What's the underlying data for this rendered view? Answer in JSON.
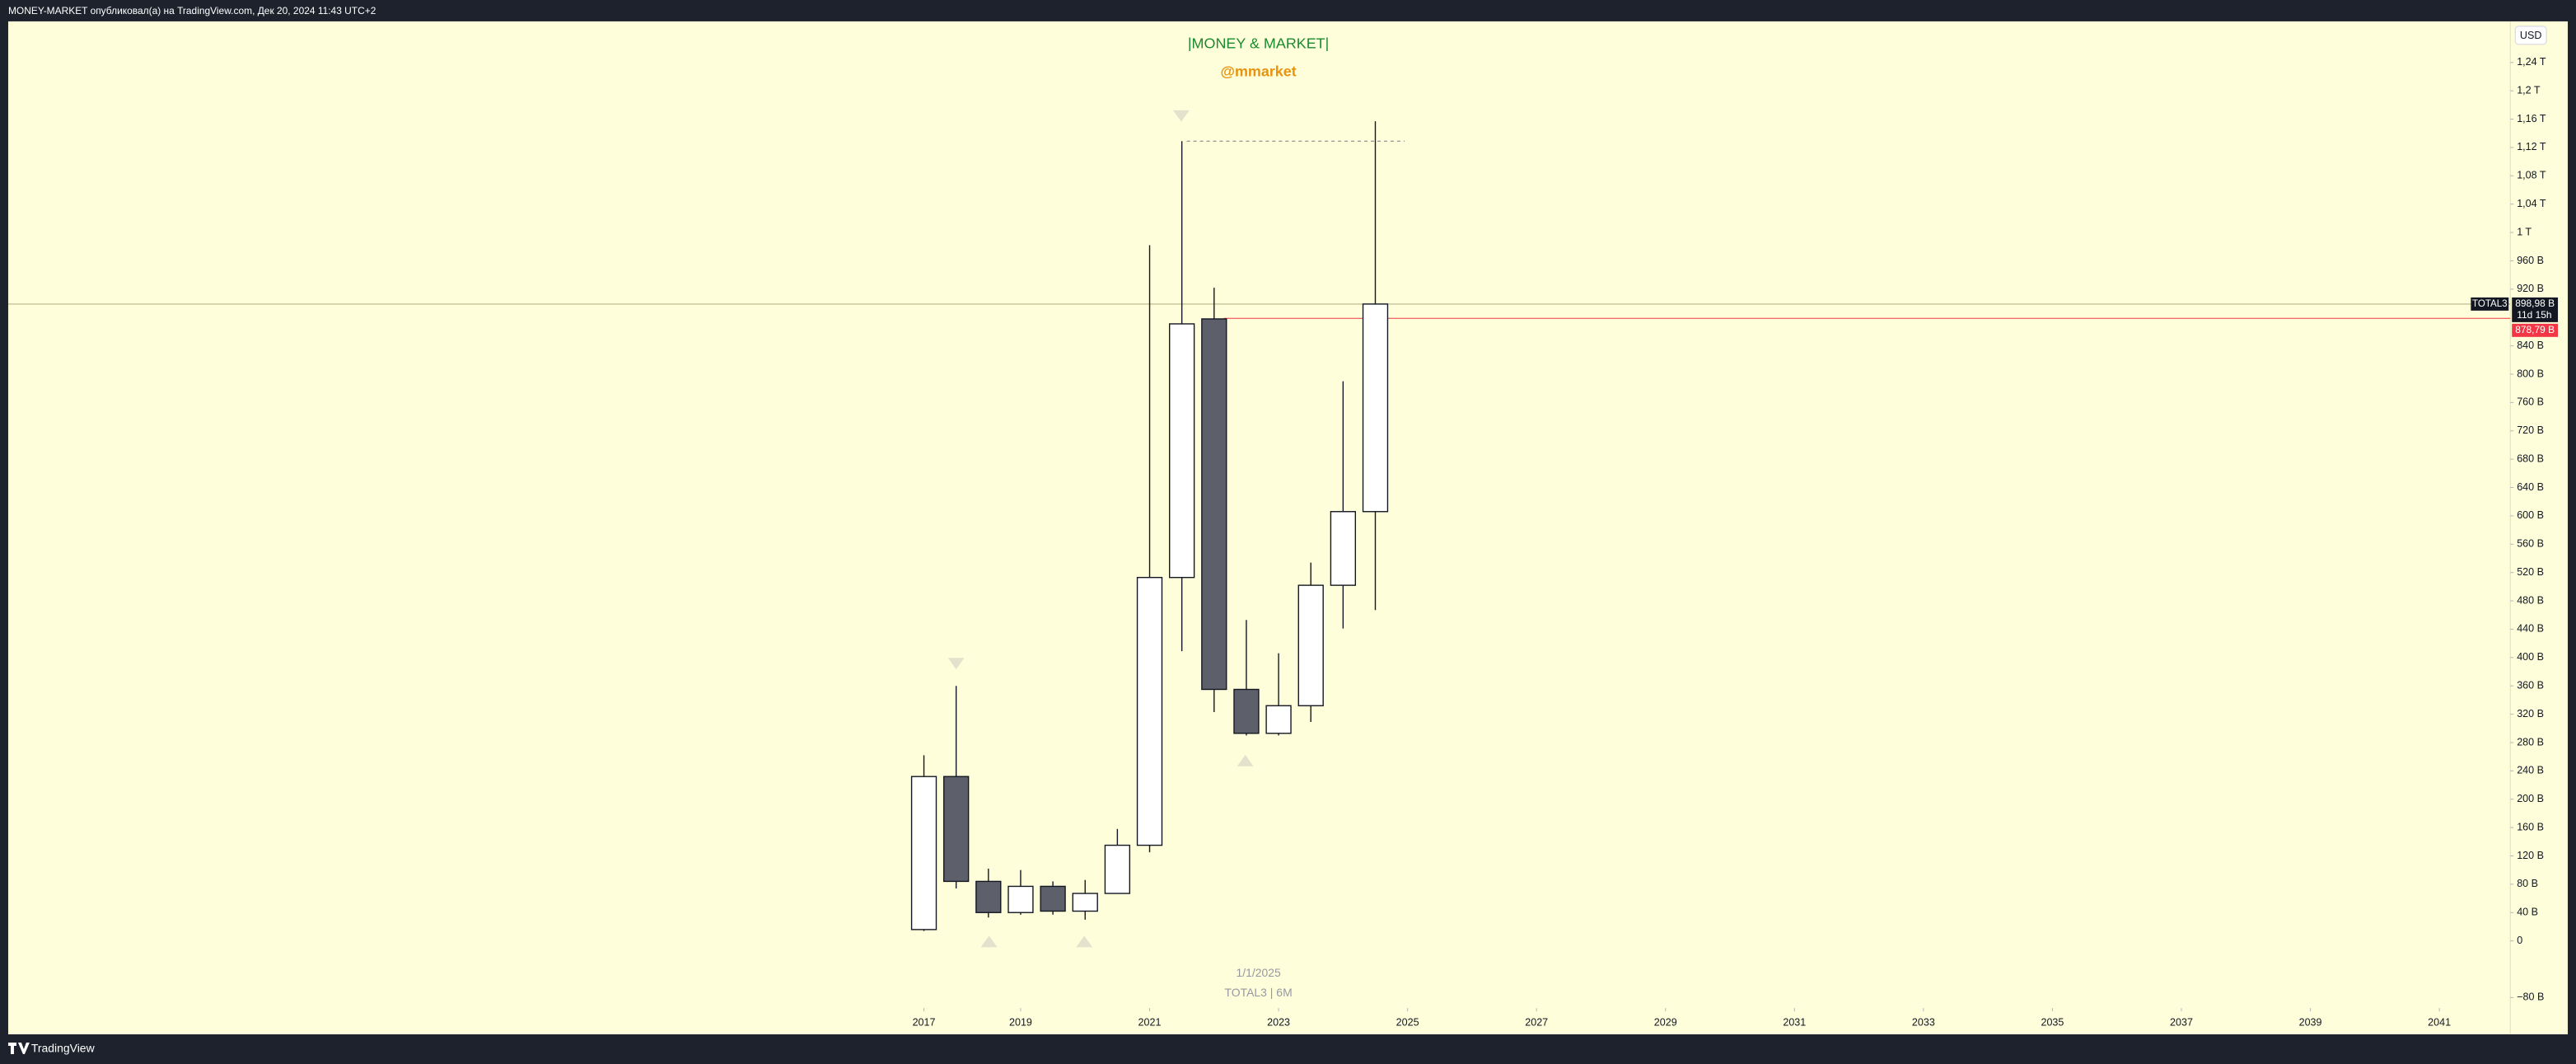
{
  "header": {
    "text": "MONEY-MARKET опубликовал(а) на TradingView.com, Дек 20, 2024 11:43 UTC+2"
  },
  "footer": {
    "brand": "TradingView"
  },
  "chart_data": {
    "type": "candlestick",
    "title": "|MONEY & MARKET|",
    "subtitle": "@mmarket",
    "annotations": [
      "1/1/2025",
      "TOTAL3 | 6M"
    ],
    "currency": "USD",
    "x": [
      2017.5,
      2018,
      2018.5,
      2019,
      2019.5,
      2020,
      2020.5,
      2021,
      2021.5,
      2022,
      2022.5,
      2023,
      2023.5,
      2024,
      2024.5
    ],
    "open": [
      16,
      232,
      84,
      40,
      77,
      42,
      67,
      135,
      513,
      878,
      355,
      293,
      332,
      502,
      606
    ],
    "high": [
      262,
      360,
      102,
      100,
      84,
      86,
      158,
      982,
      1129,
      922,
      453,
      406,
      534,
      790,
      1157
    ],
    "low": [
      14,
      74,
      33,
      37,
      37,
      30,
      67,
      125,
      409,
      323,
      290,
      290,
      309,
      441,
      467
    ],
    "close": [
      232,
      84,
      40,
      77,
      42,
      67,
      135,
      513,
      871,
      355,
      293,
      332,
      502,
      606,
      898.98
    ],
    "up_color": "#ffffff",
    "down_color": "#5d606b",
    "last_price": {
      "symbol": "TOTAL3",
      "value": 898.98,
      "label": "898,98 B",
      "countdown": "11d 15h"
    },
    "price_line": {
      "value": 878.79,
      "label": "878,79 B",
      "color": "#f23645"
    },
    "xlim": [
      2003.3,
      2042.1
    ],
    "xticks": [
      {
        "value": 2017.5,
        "label": "2017"
      },
      2019,
      2021,
      2023,
      2025,
      2027,
      2029,
      2031,
      2033,
      2035,
      2037,
      2039,
      2041
    ],
    "ylim": [
      -132,
      1298
    ],
    "yticks": [
      {
        "value": -80,
        "label": "−80 B"
      },
      0,
      {
        "value": 40,
        "label": "40 B"
      },
      {
        "value": 80,
        "label": "80 B"
      },
      {
        "value": 120,
        "label": "120 B"
      },
      {
        "value": 160,
        "label": "160 B"
      },
      {
        "value": 200,
        "label": "200 B"
      },
      {
        "value": 240,
        "label": "240 B"
      },
      {
        "value": 280,
        "label": "280 B"
      },
      {
        "value": 320,
        "label": "320 B"
      },
      {
        "value": 360,
        "label": "360 B"
      },
      {
        "value": 400,
        "label": "400 B"
      },
      {
        "value": 440,
        "label": "440 B"
      },
      {
        "value": 480,
        "label": "480 B"
      },
      {
        "value": 520,
        "label": "520 B"
      },
      {
        "value": 560,
        "label": "560 B"
      },
      {
        "value": 600,
        "label": "600 B"
      },
      {
        "value": 640,
        "label": "640 B"
      },
      {
        "value": 680,
        "label": "680 B"
      },
      {
        "value": 720,
        "label": "720 B"
      },
      {
        "value": 760,
        "label": "760 B"
      },
      {
        "value": 800,
        "label": "800 B"
      },
      {
        "value": 840,
        "label": "840 B"
      },
      {
        "value": 920,
        "label": "920 B"
      },
      {
        "value": 960,
        "label": "960 B"
      },
      {
        "value": 1000,
        "label": "1 T"
      },
      {
        "value": 1040,
        "label": "1,04 T"
      },
      {
        "value": 1080,
        "label": "1,08 T"
      },
      {
        "value": 1120,
        "label": "1,12 T"
      },
      {
        "value": 1160,
        "label": "1,16 T"
      },
      {
        "value": 1200,
        "label": "1,2 T"
      },
      {
        "value": 1240,
        "label": "1,24 T"
      }
    ]
  }
}
